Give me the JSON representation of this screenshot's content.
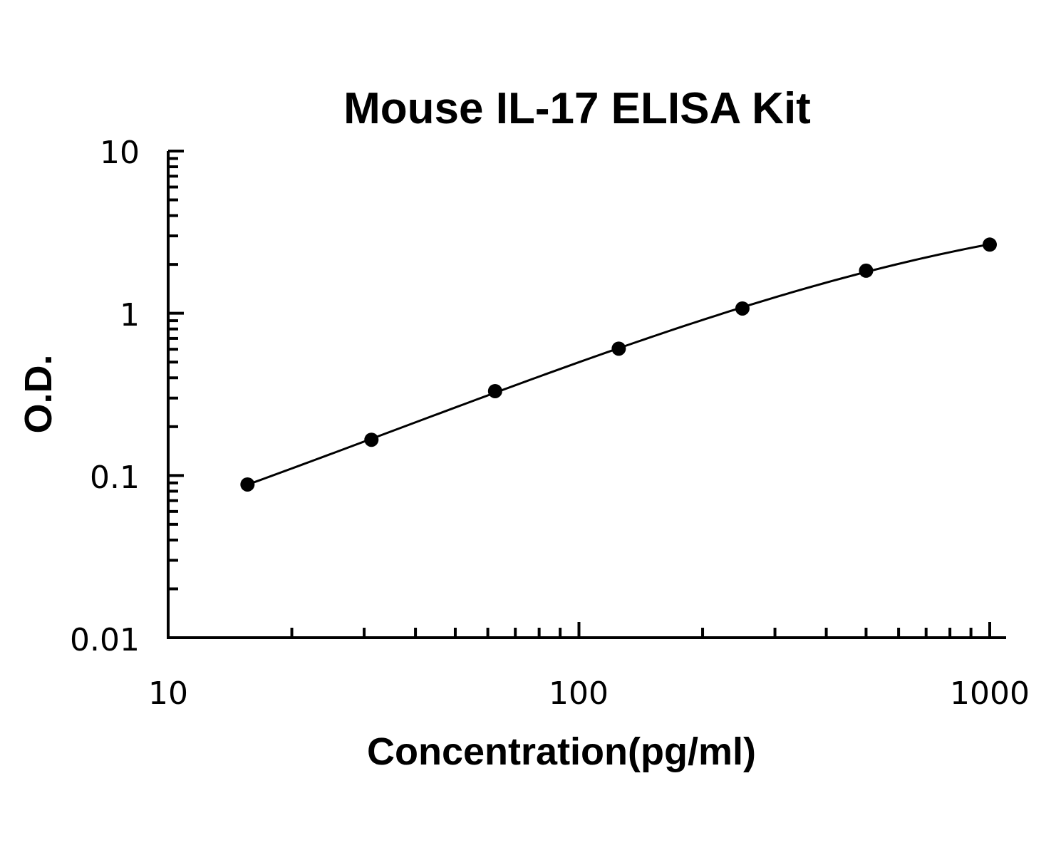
{
  "chart_data": {
    "type": "scatter",
    "title": "Mouse IL-17 ELISA Kit",
    "xlabel": "Concentration(pg/ml)",
    "ylabel": "O.D.",
    "xscale": "log",
    "yscale": "log",
    "xlim": [
      10,
      1000
    ],
    "ylim": [
      0.01,
      10
    ],
    "x_tick_labels": [
      "10",
      "100",
      "1000"
    ],
    "y_tick_labels": [
      "10",
      "1",
      "0.1",
      "0.01"
    ],
    "grid": false,
    "fit_line": true,
    "series": [
      {
        "x": [
          15.6,
          31.25,
          62.5,
          125,
          250,
          500,
          1000
        ],
        "y": [
          0.088,
          0.166,
          0.331,
          0.605,
          1.07,
          1.83,
          2.65
        ]
      }
    ],
    "colors": {
      "marker": "#000000",
      "line": "#000000",
      "axis": "#000000"
    }
  }
}
